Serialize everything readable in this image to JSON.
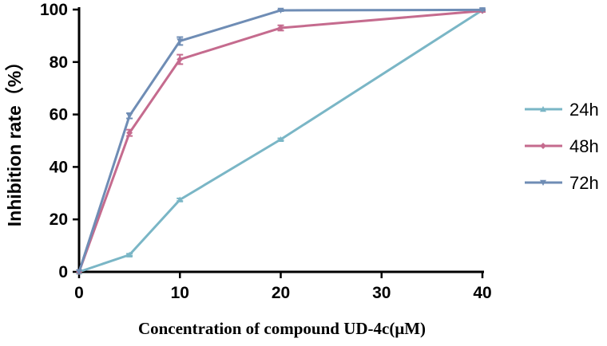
{
  "chart_data": {
    "type": "line",
    "title": "",
    "xlabel": "Concentration of compound UD-4c(μM)",
    "ylabel": "Inhibition rate（%）",
    "xlim": [
      0,
      40
    ],
    "ylim": [
      0,
      100
    ],
    "xticks": [
      0,
      10,
      20,
      30,
      40
    ],
    "yticks": [
      0,
      20,
      40,
      60,
      80,
      100
    ],
    "grid": false,
    "legend_position": "right",
    "series": [
      {
        "name": "24h",
        "color": "#7ab6c6",
        "marker": "triangle-up",
        "x": [
          0,
          5,
          10,
          20,
          40
        ],
        "y": [
          0,
          6.5,
          27.5,
          50.5,
          99.8
        ],
        "err": [
          0,
          0.4,
          0.5,
          0.4,
          0.3
        ]
      },
      {
        "name": "48h",
        "color": "#c56b8e",
        "marker": "diamond",
        "x": [
          0,
          5,
          10,
          20,
          40
        ],
        "y": [
          0,
          53,
          81,
          93,
          99.5
        ],
        "err": [
          0,
          1.2,
          1.8,
          1.0,
          0.4
        ]
      },
      {
        "name": "72h",
        "color": "#6f8db5",
        "marker": "triangle-down",
        "x": [
          0,
          5,
          10,
          20,
          40
        ],
        "y": [
          0,
          59.5,
          88,
          99.7,
          99.9
        ],
        "err": [
          0,
          1.0,
          1.5,
          0.3,
          0.3
        ]
      }
    ]
  }
}
